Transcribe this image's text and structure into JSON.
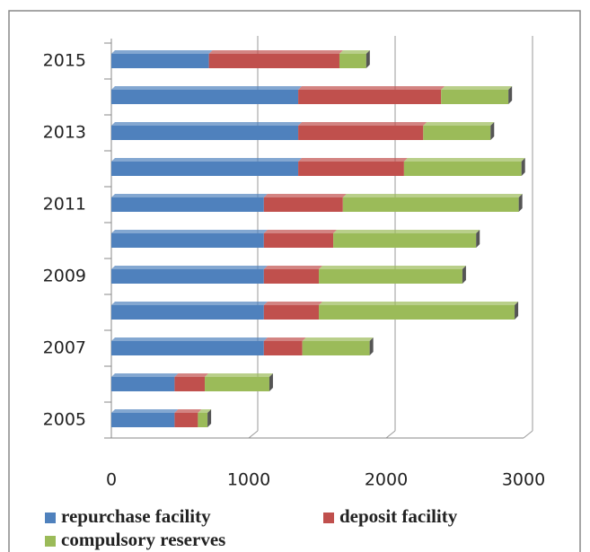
{
  "chart_data": {
    "type": "stacked-bar-horizontal",
    "categories": [
      "2005",
      null,
      "2007",
      null,
      "2009",
      null,
      "2011",
      null,
      "2013",
      null,
      "2015"
    ],
    "series": [
      {
        "name": "repurchase facility",
        "color": "#4f81bd",
        "values": [
          460,
          460,
          1110,
          1110,
          1110,
          1110,
          1110,
          1360,
          1360,
          1360,
          710
        ]
      },
      {
        "name": "deposit facility",
        "color": "#c0504d",
        "values": [
          170,
          220,
          280,
          400,
          400,
          505,
          575,
          770,
          910,
          1040,
          950
        ]
      },
      {
        "name": "compulsory reserves",
        "color": "#9bbb59",
        "values": [
          70,
          470,
          490,
          1425,
          1045,
          1040,
          1280,
          855,
          490,
          490,
          195
        ]
      }
    ],
    "xlim": [
      0,
      3000
    ],
    "xticks": [
      0,
      1000,
      2000,
      3000
    ],
    "grid": true
  }
}
